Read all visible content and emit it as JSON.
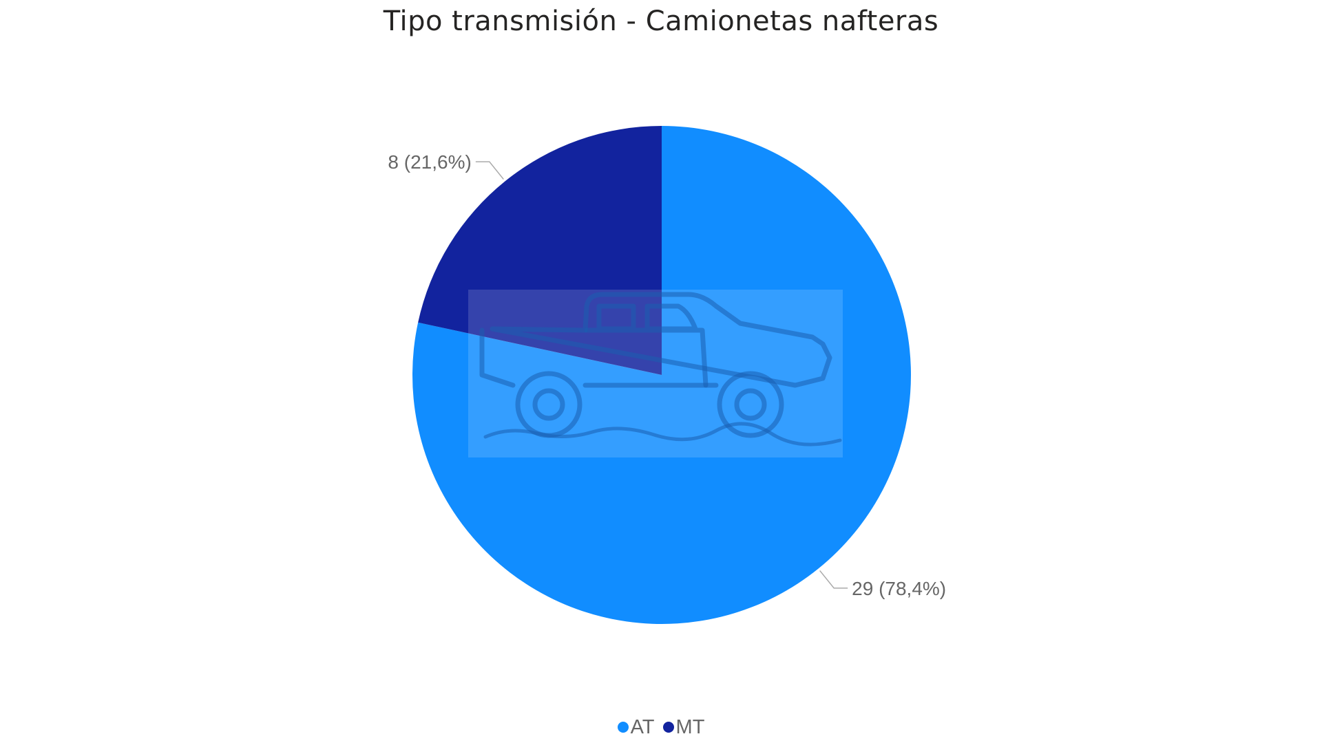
{
  "chart_data": {
    "type": "pie",
    "title": "Tipo transmisión - Camionetas nafteras",
    "series": [
      {
        "name": "AT",
        "value": 29,
        "percent": 78.4,
        "label": "29 (78,4%)",
        "color": "#118DFF"
      },
      {
        "name": "MT",
        "value": 8,
        "percent": 21.6,
        "label": "8 (21,6%)",
        "color": "#12239E"
      }
    ],
    "legend_position": "bottom-center",
    "watermark_icon": "pickup-truck-offroad-icon"
  }
}
